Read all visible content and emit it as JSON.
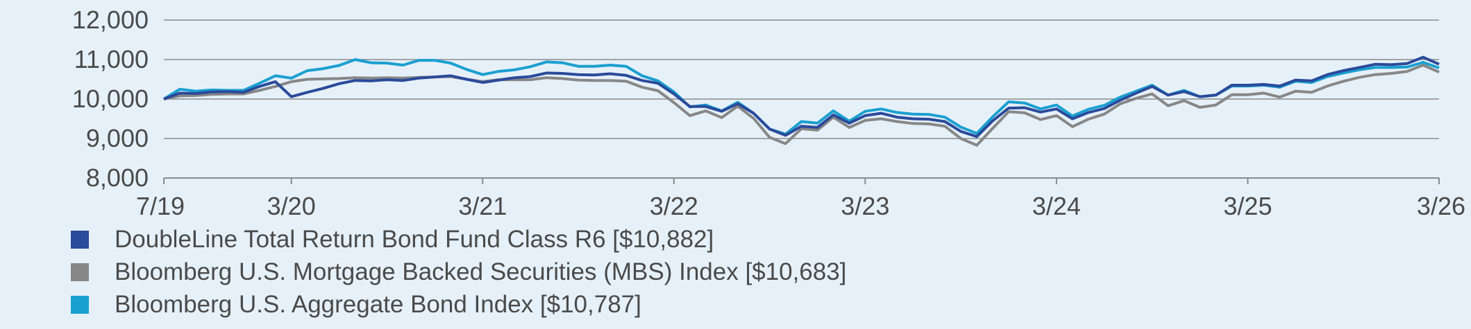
{
  "chart_data": {
    "type": "line",
    "x_ticks": [
      "7/19",
      "3/20",
      "3/21",
      "3/22",
      "3/23",
      "3/24",
      "3/25",
      "3/26"
    ],
    "y_ticks": [
      8000,
      9000,
      10000,
      11000,
      12000
    ],
    "y_tick_labels": [
      "8,000",
      "9,000",
      "10,000",
      "11,000",
      "12,000"
    ],
    "ylim": [
      8000,
      12000
    ],
    "xlim": [
      "2019-07",
      "2026-03"
    ],
    "grid": "horizontal",
    "legend_placement": "bottom-left",
    "series": [
      {
        "name": "DoubleLine Total Return Bond Fund Class R6 [$10,882]",
        "color": "#2a4a9a",
        "x": [
          "2019-07",
          "2019-08",
          "2019-09",
          "2019-10",
          "2019-11",
          "2019-12",
          "2020-01",
          "2020-02",
          "2020-03",
          "2020-04",
          "2020-05",
          "2020-06",
          "2020-07",
          "2020-08",
          "2020-09",
          "2020-10",
          "2020-11",
          "2020-12",
          "2021-01",
          "2021-02",
          "2021-03",
          "2021-04",
          "2021-05",
          "2021-06",
          "2021-07",
          "2021-08",
          "2021-09",
          "2021-10",
          "2021-11",
          "2021-12",
          "2022-01",
          "2022-02",
          "2022-03",
          "2022-04",
          "2022-05",
          "2022-06",
          "2022-07",
          "2022-08",
          "2022-09",
          "2022-10",
          "2022-11",
          "2022-12",
          "2023-01",
          "2023-02",
          "2023-03",
          "2023-04",
          "2023-05",
          "2023-06",
          "2023-07",
          "2023-08",
          "2023-09",
          "2023-10",
          "2023-11",
          "2023-12",
          "2024-01",
          "2024-02",
          "2024-03",
          "2024-04",
          "2024-05",
          "2024-06",
          "2024-07",
          "2024-08",
          "2024-09",
          "2024-10",
          "2024-11",
          "2024-12",
          "2025-01",
          "2025-02",
          "2025-03",
          "2025-04",
          "2025-05",
          "2025-06",
          "2025-07",
          "2025-08",
          "2025-09",
          "2025-10",
          "2025-11",
          "2025-12",
          "2026-01",
          "2026-02",
          "2026-03"
        ],
        "y": [
          10000,
          10150,
          10140,
          10180,
          10190,
          10170,
          10320,
          10440,
          10060,
          10170,
          10270,
          10390,
          10470,
          10460,
          10490,
          10470,
          10530,
          10560,
          10590,
          10500,
          10420,
          10480,
          10540,
          10570,
          10660,
          10650,
          10620,
          10610,
          10640,
          10600,
          10470,
          10400,
          10130,
          9810,
          9810,
          9690,
          9880,
          9640,
          9240,
          9080,
          9310,
          9280,
          9600,
          9390,
          9580,
          9640,
          9540,
          9500,
          9490,
          9430,
          9180,
          9050,
          9450,
          9770,
          9780,
          9670,
          9750,
          9500,
          9660,
          9760,
          9970,
          10150,
          10320,
          10100,
          10190,
          10060,
          10100,
          10350,
          10350,
          10370,
          10330,
          10480,
          10460,
          10620,
          10720,
          10800,
          10880,
          10870,
          10900,
          11060,
          10882
        ]
      },
      {
        "name": "Bloomberg U.S. Mortgage Backed Securities (MBS) Index [$10,683]",
        "color": "#878787",
        "x": [
          "2019-07",
          "2019-08",
          "2019-09",
          "2019-10",
          "2019-11",
          "2019-12",
          "2020-01",
          "2020-02",
          "2020-03",
          "2020-04",
          "2020-05",
          "2020-06",
          "2020-07",
          "2020-08",
          "2020-09",
          "2020-10",
          "2020-11",
          "2020-12",
          "2021-01",
          "2021-02",
          "2021-03",
          "2021-04",
          "2021-05",
          "2021-06",
          "2021-07",
          "2021-08",
          "2021-09",
          "2021-10",
          "2021-11",
          "2021-12",
          "2022-01",
          "2022-02",
          "2022-03",
          "2022-04",
          "2022-05",
          "2022-06",
          "2022-07",
          "2022-08",
          "2022-09",
          "2022-10",
          "2022-11",
          "2022-12",
          "2023-01",
          "2023-02",
          "2023-03",
          "2023-04",
          "2023-05",
          "2023-06",
          "2023-07",
          "2023-08",
          "2023-09",
          "2023-10",
          "2023-11",
          "2023-12",
          "2024-01",
          "2024-02",
          "2024-03",
          "2024-04",
          "2024-05",
          "2024-06",
          "2024-07",
          "2024-08",
          "2024-09",
          "2024-10",
          "2024-11",
          "2024-12",
          "2025-01",
          "2025-02",
          "2025-03",
          "2025-04",
          "2025-05",
          "2025-06",
          "2025-07",
          "2025-08",
          "2025-09",
          "2025-10",
          "2025-11",
          "2025-12",
          "2026-01",
          "2026-02",
          "2026-03"
        ],
        "y": [
          10000,
          10080,
          10090,
          10120,
          10130,
          10130,
          10220,
          10320,
          10440,
          10500,
          10510,
          10520,
          10540,
          10530,
          10540,
          10530,
          10550,
          10560,
          10570,
          10500,
          10440,
          10490,
          10490,
          10490,
          10540,
          10520,
          10480,
          10470,
          10470,
          10450,
          10300,
          10210,
          9910,
          9580,
          9700,
          9530,
          9820,
          9510,
          9030,
          8870,
          9250,
          9210,
          9540,
          9280,
          9460,
          9500,
          9430,
          9380,
          9370,
          9310,
          9000,
          8830,
          9260,
          9680,
          9650,
          9480,
          9580,
          9300,
          9490,
          9620,
          9880,
          10020,
          10130,
          9830,
          9960,
          9790,
          9850,
          10110,
          10110,
          10150,
          10050,
          10200,
          10170,
          10330,
          10450,
          10550,
          10620,
          10650,
          10700,
          10860,
          10683
        ]
      },
      {
        "name": "Bloomberg U.S. Aggregate Bond Index [$10,787]",
        "color": "#1aa0d0",
        "x": [
          "2019-07",
          "2019-08",
          "2019-09",
          "2019-10",
          "2019-11",
          "2019-12",
          "2020-01",
          "2020-02",
          "2020-03",
          "2020-04",
          "2020-05",
          "2020-06",
          "2020-07",
          "2020-08",
          "2020-09",
          "2020-10",
          "2020-11",
          "2020-12",
          "2021-01",
          "2021-02",
          "2021-03",
          "2021-04",
          "2021-05",
          "2021-06",
          "2021-07",
          "2021-08",
          "2021-09",
          "2021-10",
          "2021-11",
          "2021-12",
          "2022-01",
          "2022-02",
          "2022-03",
          "2022-04",
          "2022-05",
          "2022-06",
          "2022-07",
          "2022-08",
          "2022-09",
          "2022-10",
          "2022-11",
          "2022-12",
          "2023-01",
          "2023-02",
          "2023-03",
          "2023-04",
          "2023-05",
          "2023-06",
          "2023-07",
          "2023-08",
          "2023-09",
          "2023-10",
          "2023-11",
          "2023-12",
          "2024-01",
          "2024-02",
          "2024-03",
          "2024-04",
          "2024-05",
          "2024-06",
          "2024-07",
          "2024-08",
          "2024-09",
          "2024-10",
          "2024-11",
          "2024-12",
          "2025-01",
          "2025-02",
          "2025-03",
          "2025-04",
          "2025-05",
          "2025-06",
          "2025-07",
          "2025-08",
          "2025-09",
          "2025-10",
          "2025-11",
          "2025-12",
          "2026-01",
          "2026-02",
          "2026-03"
        ],
        "y": [
          10000,
          10250,
          10200,
          10230,
          10220,
          10220,
          10400,
          10590,
          10530,
          10720,
          10770,
          10850,
          11000,
          10920,
          10910,
          10860,
          10980,
          10980,
          10910,
          10750,
          10620,
          10700,
          10740,
          10820,
          10940,
          10920,
          10830,
          10830,
          10860,
          10830,
          10590,
          10460,
          10180,
          9800,
          9850,
          9700,
          9920,
          9640,
          9240,
          9110,
          9430,
          9390,
          9700,
          9440,
          9690,
          9750,
          9660,
          9620,
          9610,
          9540,
          9290,
          9130,
          9550,
          9930,
          9900,
          9750,
          9850,
          9570,
          9740,
          9840,
          10050,
          10200,
          10350,
          10100,
          10220,
          10060,
          10100,
          10330,
          10330,
          10350,
          10300,
          10450,
          10420,
          10570,
          10660,
          10740,
          10800,
          10800,
          10810,
          10930,
          10787
        ]
      }
    ]
  }
}
